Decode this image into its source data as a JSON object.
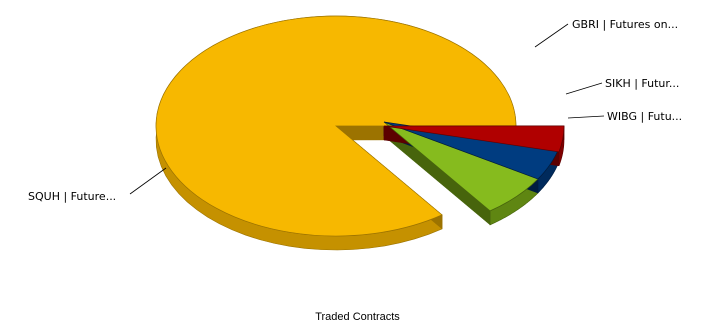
{
  "chart_data": {
    "type": "pie",
    "title": "Traded Contracts",
    "style": "3d-exploded",
    "legend": "none",
    "slices": [
      {
        "label": "SQUH | Future...",
        "value": 85.0,
        "color": "#F7B800",
        "side_color": "#C59100",
        "dark_color": "#9C7300"
      },
      {
        "label": "GBRI | Futures on...",
        "value": 6.3,
        "color": "#86BB1E",
        "side_color": "#5F8612",
        "dark_color": "#47640C"
      },
      {
        "label": "SIKH | Futur...",
        "value": 4.9,
        "color": "#003C80",
        "side_color": "#002A5C",
        "dark_color": "#001D40"
      },
      {
        "label": "WIBG | Futu...",
        "value": 3.8,
        "color": "#B00000",
        "side_color": "#800000",
        "dark_color": "#5C0000"
      }
    ]
  }
}
